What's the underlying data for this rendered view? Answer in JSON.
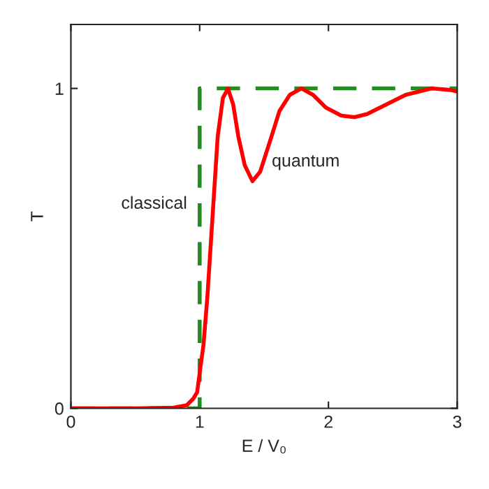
{
  "chart_data": {
    "type": "line",
    "xlabel": "E / V₀",
    "ylabel": "T",
    "xlim": [
      0,
      3
    ],
    "ylim": [
      0,
      1.2
    ],
    "xticks": [
      0,
      1,
      2,
      3
    ],
    "yticks": [
      0,
      1
    ],
    "grid": false,
    "legend": false,
    "marker": "none",
    "series": [
      {
        "name": "classical",
        "color": "#228b22",
        "line_style": "dashed",
        "x": [
          0,
          1,
          1,
          3
        ],
        "values": [
          0,
          0,
          1,
          1
        ]
      },
      {
        "name": "quantum",
        "color": "#ff0000",
        "line_style": "solid",
        "x": [
          0,
          0.5,
          0.8,
          0.9,
          0.95,
          0.98,
          1.0,
          1.03,
          1.06,
          1.1,
          1.14,
          1.18,
          1.22,
          1.26,
          1.3,
          1.35,
          1.41,
          1.47,
          1.55,
          1.62,
          1.7,
          1.79,
          1.88,
          1.98,
          2.1,
          2.2,
          2.3,
          2.45,
          2.6,
          2.8,
          2.95,
          3.0
        ],
        "values": [
          0,
          0,
          0.002,
          0.01,
          0.03,
          0.05,
          0.11,
          0.2,
          0.35,
          0.6,
          0.85,
          0.97,
          1.0,
          0.95,
          0.85,
          0.76,
          0.71,
          0.74,
          0.84,
          0.93,
          0.98,
          1.0,
          0.98,
          0.94,
          0.915,
          0.91,
          0.92,
          0.95,
          0.98,
          1.0,
          0.995,
          0.99
        ]
      }
    ]
  }
}
